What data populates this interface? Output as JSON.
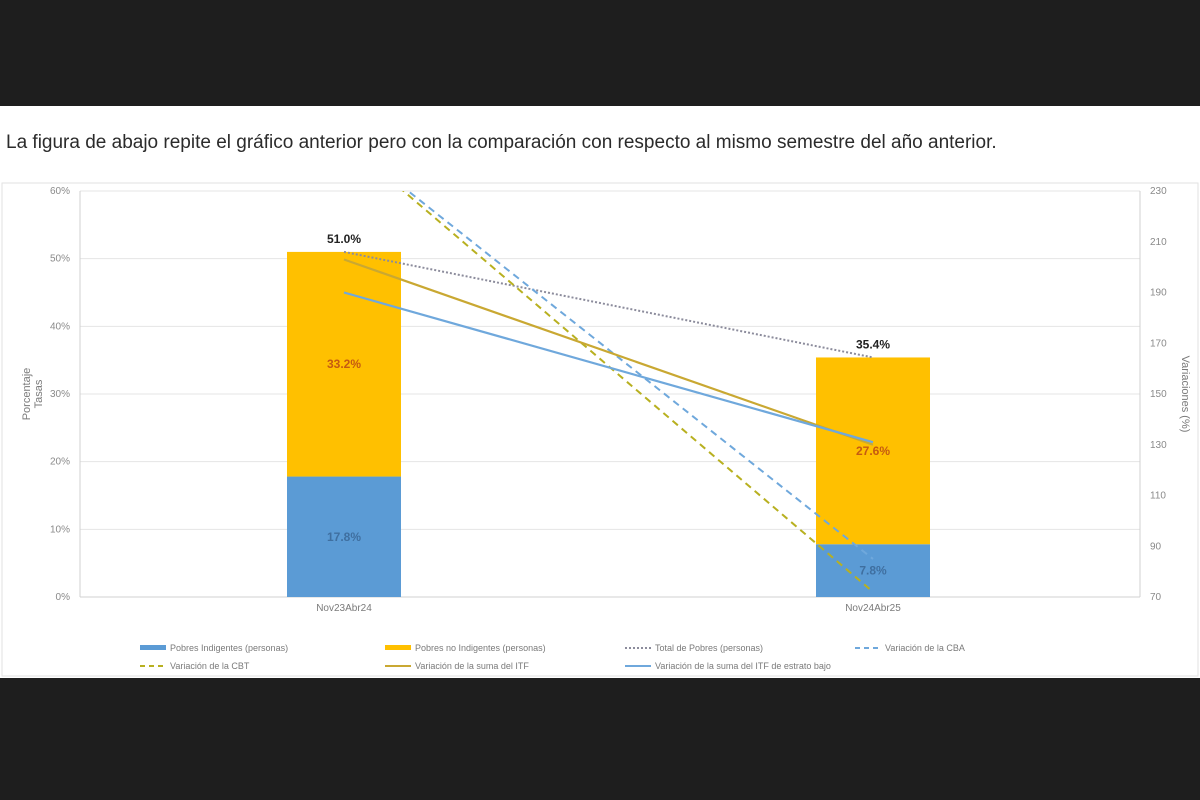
{
  "page": {
    "intro_text": "La figura de abajo repite el gráfico anterior pero con la comparación con respecto al mismo semestre del año anterior."
  },
  "chart_data": {
    "type": "bar",
    "stacked": true,
    "categories": [
      "Nov23Abr24",
      "Nov24Abr25"
    ],
    "y_left": {
      "label_lines": [
        "Porcentaje",
        "Tasas"
      ],
      "min": 0,
      "max": 60,
      "step": 10,
      "format": "percent"
    },
    "y_right": {
      "label": "Variaciones (%)",
      "min": 70,
      "max": 230,
      "step": 20
    },
    "grid": true,
    "legend_position": "bottom",
    "series": [
      {
        "name": "Pobres Indigentes (personas)",
        "kind": "bar",
        "axis": "left",
        "color": "#5b9bd5",
        "values": [
          17.8,
          7.8
        ],
        "labels": [
          "17.8%",
          "7.8%"
        ],
        "label_color": "#3f6fa0"
      },
      {
        "name": "Pobres no Indigentes (personas)",
        "kind": "bar",
        "axis": "left",
        "color": "#ffc000",
        "values": [
          33.2,
          27.6
        ],
        "labels": [
          "33.2%",
          "27.6%"
        ],
        "label_color": "#c55a11"
      },
      {
        "name": "Total de Pobres (personas)",
        "kind": "line",
        "style": "dotted",
        "axis": "left",
        "color": "#8c8c9c",
        "values": [
          51.0,
          35.4
        ]
      },
      {
        "name": "Variación de la CBA",
        "kind": "line",
        "style": "dashed",
        "axis": "right",
        "color": "#6fa8dc",
        "values": [
          250,
          85
        ]
      },
      {
        "name": "Variación de la CBT",
        "kind": "line",
        "style": "dashed",
        "axis": "right",
        "color": "#b8b020",
        "values": [
          250,
          72
        ]
      },
      {
        "name": "Variación de la suma del ITF",
        "kind": "line",
        "style": "solid",
        "axis": "right",
        "color": "#c9a832",
        "values": [
          203,
          130
        ]
      },
      {
        "name": "Variación de la suma del ITF de estrato bajo",
        "kind": "line",
        "style": "solid",
        "axis": "right",
        "color": "#6fa8dc",
        "values": [
          190,
          131
        ]
      }
    ],
    "totals": {
      "values": [
        51.0,
        35.4
      ],
      "labels": [
        "51.0%",
        "35.4%"
      ]
    }
  }
}
